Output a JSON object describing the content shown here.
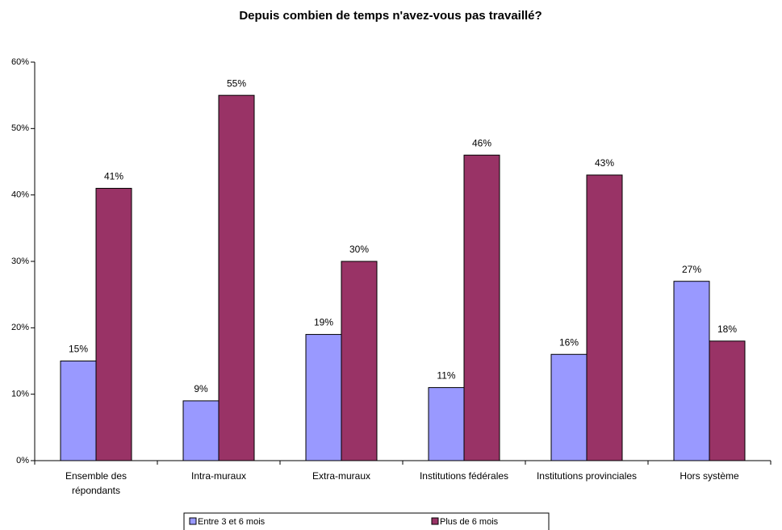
{
  "chart_data": {
    "type": "bar",
    "title": "Depuis combien de temps n'avez-vous pas travaillé?",
    "categories": [
      "Ensemble des répondants",
      "Intra-muraux",
      "Extra-muraux",
      "Institutions fédérales",
      "Institutions provinciales",
      "Hors système"
    ],
    "series": [
      {
        "name": "Entre 3 et 6 mois",
        "color": "#9999ff",
        "values": [
          15,
          9,
          19,
          11,
          16,
          27
        ],
        "value_labels": [
          "15%",
          "9%",
          "19%",
          "11%",
          "16%",
          "27%"
        ]
      },
      {
        "name": "Plus de 6 mois",
        "color": "#993366",
        "values": [
          41,
          55,
          30,
          46,
          43,
          18
        ],
        "value_labels": [
          "41%",
          "55%",
          "30%",
          "46%",
          "43%",
          "18%"
        ]
      }
    ],
    "ylim": [
      0,
      60
    ],
    "yticks": [
      {
        "value": 0,
        "label": "0%"
      },
      {
        "value": 10,
        "label": "10%"
      },
      {
        "value": 20,
        "label": "20%"
      },
      {
        "value": 30,
        "label": "30%"
      },
      {
        "value": 40,
        "label": "40%"
      },
      {
        "value": 50,
        "label": "50%"
      },
      {
        "value": 60,
        "label": "60%"
      }
    ],
    "grid": false,
    "legend": "bottom"
  }
}
